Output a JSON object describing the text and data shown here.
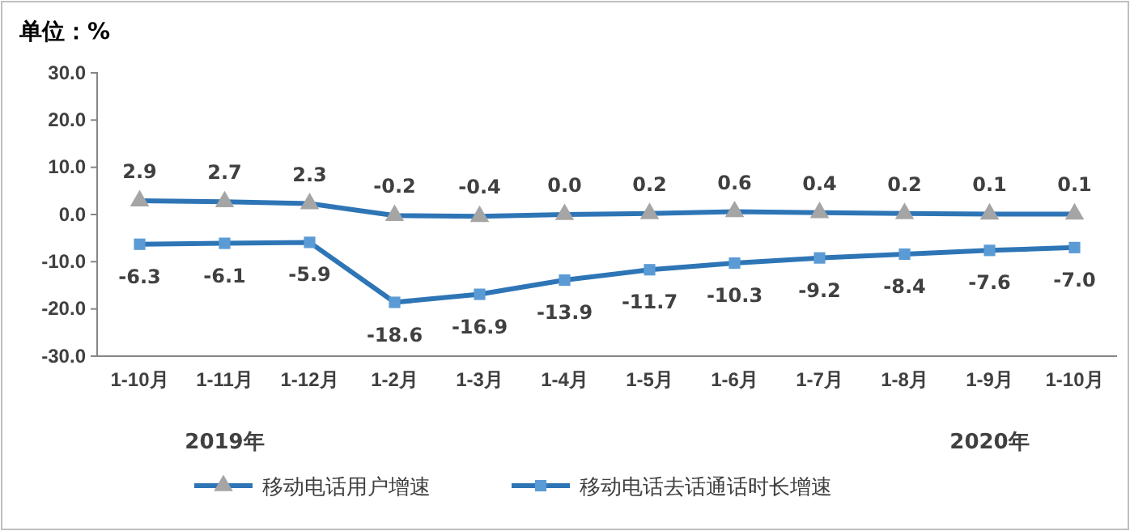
{
  "chart_data": {
    "type": "line",
    "title": "单位：%",
    "categories": [
      "1-10月",
      "1-11月",
      "1-12月",
      "1-2月",
      "1-3月",
      "1-4月",
      "1-5月",
      "1-6月",
      "1-7月",
      "1-8月",
      "1-9月",
      "1-10月"
    ],
    "series": [
      {
        "name": "移动电话用户增速",
        "color": "#2e75b6",
        "marker": "triangle",
        "colors": [
          "#a5a5a5",
          "#a5a5a5",
          "#a5a5a5",
          "#a5a5a5",
          "#a5a5a5",
          "#a5a5a5",
          "#a5a5a5",
          "#a5a5a5",
          "#a5a5a5",
          "#a5a5a5",
          "#a5a5a5",
          "#a5a5a5"
        ],
        "values": [
          2.9,
          2.7,
          2.3,
          -0.2,
          -0.4,
          0.0,
          0.2,
          0.6,
          0.4,
          0.2,
          0.1,
          0.1
        ],
        "value_labels": [
          "2.9",
          "2.7",
          "2.3",
          "-0.2",
          "-0.4",
          "0.0",
          "0.2",
          "0.6",
          "0.4",
          "0.2",
          "0.1",
          "0.1"
        ]
      },
      {
        "name": "移动电话去话通话时长增速",
        "color": "#2e75b6",
        "marker": "square",
        "colors": [
          "#5b9bd5",
          "#5b9bd5",
          "#5b9bd5",
          "#5b9bd5",
          "#5b9bd5",
          "#5b9bd5",
          "#5b9bd5",
          "#5b9bd5",
          "#5b9bd5",
          "#5b9bd5",
          "#5b9bd5",
          "#5b9bd5"
        ],
        "values": [
          -6.3,
          -6.1,
          -5.9,
          -18.6,
          -16.9,
          -13.9,
          -11.7,
          -10.3,
          -9.2,
          -8.4,
          -7.6,
          -7.0
        ],
        "value_labels": [
          "-6.3",
          "-6.1",
          "-5.9",
          "-18.6",
          "-16.9",
          "-13.9",
          "-11.7",
          "-10.3",
          "-9.2",
          "-8.4",
          "-7.6",
          "-7.0"
        ]
      }
    ],
    "ylim": [
      -30,
      30
    ],
    "yticks": [
      {
        "value": -30,
        "label": "-30.0"
      },
      {
        "value": -20,
        "label": "-20.0"
      },
      {
        "value": -10,
        "label": "-10.0"
      },
      {
        "value": 0,
        "label": "0.0"
      },
      {
        "value": 10,
        "label": "10.0"
      },
      {
        "value": 20,
        "label": "20.0"
      },
      {
        "value": 30,
        "label": "30.0"
      }
    ],
    "annotations": [
      "2019年",
      "2020年"
    ],
    "legend": "bottom",
    "grid": false
  }
}
